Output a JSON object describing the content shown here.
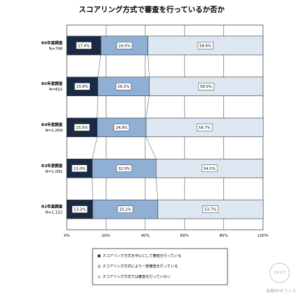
{
  "chart_data": {
    "type": "bar",
    "stacked": "horizontal-100-percent",
    "title": "スコアリング方式で審査を行っているか否か",
    "categories": [
      {
        "label": "R6年度調査",
        "n": "N=788"
      },
      {
        "label": "R5年度調査",
        "n": "N=822"
      },
      {
        "label": "R4年度調査",
        "n": "N=1,009"
      },
      {
        "label": "R3年度調査",
        "n": "N=1,092"
      },
      {
        "label": "R2年度調査",
        "n": "N=1,122"
      }
    ],
    "series": [
      {
        "name": "スコアリング方式を中心にして審査を行っている",
        "color": "#1b2a44",
        "labels": [
          "17.4%",
          "15.8%",
          "15.5%",
          "13.0%",
          "13.2%"
        ],
        "values": [
          17.4,
          15.8,
          15.5,
          13.0,
          13.2
        ]
      },
      {
        "name": "スコアリング方式により一部審査を行っている",
        "color": "#8fb0d4",
        "labels": [
          "24.0%",
          "26.2%",
          "24.9%",
          "32.5%",
          "33.2%"
        ],
        "values": [
          24.0,
          26.2,
          24.9,
          32.5,
          33.2
        ]
      },
      {
        "name": "スコアリング方式では審査を行っていない",
        "color": "#dde7f1",
        "labels": [
          "58.6%",
          "58.0%",
          "59.7%",
          "54.5%",
          "53.7%"
        ],
        "values": [
          58.6,
          58.0,
          59.7,
          54.5,
          53.7
        ]
      }
    ],
    "xticks": [
      "0%",
      "20%",
      "40%",
      "60%",
      "80%",
      "100%"
    ],
    "xlim": [
      0,
      100
    ],
    "grid": true,
    "legend_position": "bottom",
    "legend_marker": "■"
  },
  "watermark": {
    "brand": "永野FPオフィス",
    "logo_letters": "FP FT"
  }
}
